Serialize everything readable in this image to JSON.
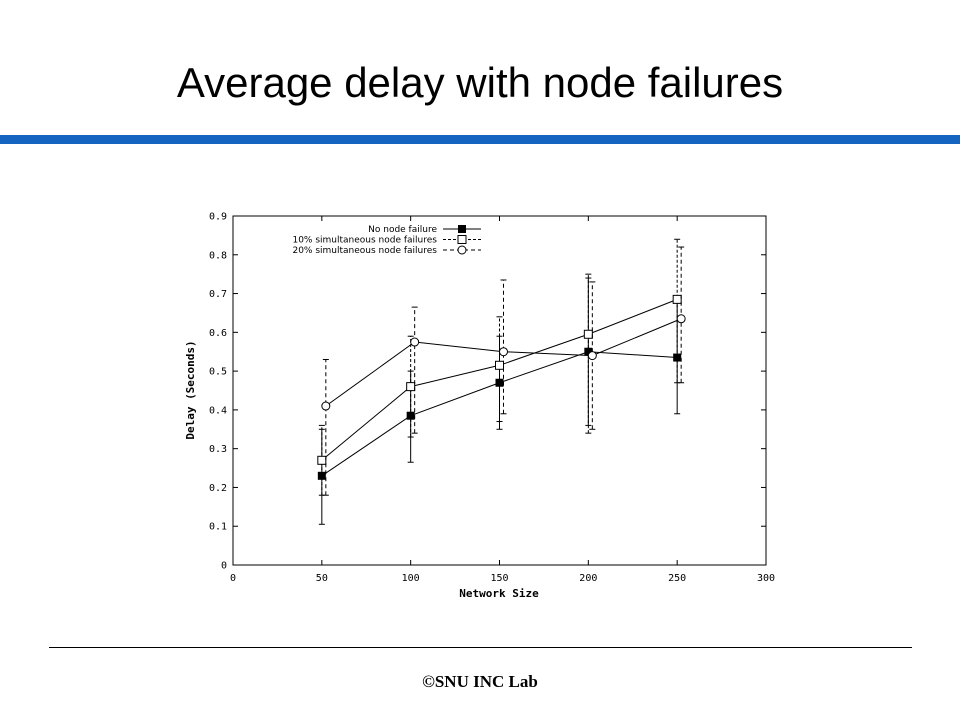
{
  "slide": {
    "title": "Average delay with node failures",
    "accent_color": "#1565c0",
    "footer": "©SNU INC Lab"
  },
  "chart_data": {
    "type": "line",
    "title": "",
    "xlabel": "Network Size",
    "ylabel": "Delay (Seconds)",
    "xlim": [
      0,
      300
    ],
    "ylim": [
      0,
      0.9
    ],
    "xticks": [
      "0",
      "50",
      "100",
      "150",
      "200",
      "250",
      "300"
    ],
    "yticks": [
      "0",
      "0.1",
      "0.2",
      "0.3",
      "0.4",
      "0.5",
      "0.6",
      "0.7",
      "0.8",
      "0.9"
    ],
    "grid": false,
    "legend_position": "top-right",
    "error_bars": true,
    "series": [
      {
        "name": "No node failure",
        "marker": "filled-square",
        "x": [
          50,
          100,
          150,
          200,
          250
        ],
        "y": [
          0.23,
          0.385,
          0.47,
          0.55,
          0.535
        ],
        "err_low": [
          0.105,
          0.265,
          0.35,
          0.36,
          0.39
        ],
        "err_high": [
          0.35,
          0.5,
          0.59,
          0.74,
          0.68
        ]
      },
      {
        "name": "10% simultaneous node failures",
        "marker": "open-square",
        "x": [
          50,
          100,
          150,
          200,
          250
        ],
        "y": [
          0.27,
          0.46,
          0.515,
          0.595,
          0.685
        ],
        "err_low": [
          0.18,
          0.33,
          0.37,
          0.34,
          0.47
        ],
        "err_high": [
          0.36,
          0.59,
          0.64,
          0.75,
          0.84
        ]
      },
      {
        "name": "20% simultaneous node failures",
        "marker": "open-circle",
        "x": [
          50,
          100,
          150,
          200,
          250
        ],
        "y": [
          0.41,
          0.575,
          0.55,
          0.54,
          0.635
        ],
        "err_low": [
          0.18,
          0.34,
          0.39,
          0.35,
          0.47
        ],
        "err_high": [
          0.53,
          0.665,
          0.735,
          0.73,
          0.82
        ]
      }
    ]
  }
}
